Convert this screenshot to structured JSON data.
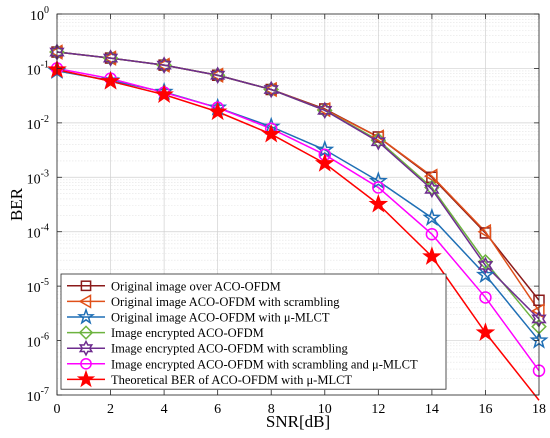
{
  "chart_data": {
    "type": "line",
    "xlabel": "SNR[dB]",
    "ylabel": "BER",
    "x_ticks": [
      0,
      2,
      4,
      6,
      8,
      10,
      12,
      14,
      16,
      18
    ],
    "y_scale": "log",
    "y_ticks": [
      {
        "value": 1,
        "base": "10",
        "exp": "0"
      },
      {
        "value": 0.1,
        "base": "10",
        "exp": "-1"
      },
      {
        "value": 0.01,
        "base": "10",
        "exp": "-2"
      },
      {
        "value": 0.001,
        "base": "10",
        "exp": "-3"
      },
      {
        "value": 0.0001,
        "base": "10",
        "exp": "-4"
      },
      {
        "value": 1e-05,
        "base": "10",
        "exp": "-5"
      },
      {
        "value": 1e-06,
        "base": "10",
        "exp": "-6"
      },
      {
        "value": 1e-07,
        "base": "10",
        "exp": "-7"
      }
    ],
    "xlim": [
      0,
      18
    ],
    "ylim": [
      1e-07,
      1
    ],
    "grid": true,
    "legend_position": "bottom-left",
    "x": [
      0,
      2,
      4,
      6,
      8,
      10,
      12,
      14,
      16,
      18
    ],
    "series": [
      {
        "name": "Original image over ACO-OFDM",
        "color": "#8b1a1a",
        "marker": "square",
        "values": [
          0.2,
          0.155,
          0.115,
          0.075,
          0.041,
          0.018,
          0.0055,
          0.001,
          9.5e-05,
          5.5e-06
        ]
      },
      {
        "name": "Original image ACO-OFDM with scrambling",
        "color": "#e0501a",
        "marker": "triangle-left",
        "values": [
          0.2,
          0.155,
          0.115,
          0.075,
          0.041,
          0.0175,
          0.0055,
          0.00105,
          0.0001,
          3.5e-06
        ]
      },
      {
        "name": "Original image ACO-OFDM with μ-MLCT",
        "color": "#1f6fb5",
        "marker": "star",
        "values": [
          0.09,
          0.06,
          0.037,
          0.019,
          0.0085,
          0.0032,
          0.00085,
          0.00018,
          1.6e-05,
          1e-06
        ]
      },
      {
        "name": "Image encrypted ACO-OFDM",
        "color": "#6db33f",
        "marker": "diamond",
        "values": [
          0.2,
          0.155,
          0.115,
          0.075,
          0.041,
          0.017,
          0.0048,
          0.00065,
          2.8e-05,
          1.8e-06
        ]
      },
      {
        "name": "Image encrypted ACO-OFDM with scrambling",
        "color": "#6e2c8e",
        "marker": "hexagram",
        "values": [
          0.2,
          0.155,
          0.115,
          0.075,
          0.041,
          0.017,
          0.0045,
          0.0006,
          2.4e-05,
          2.5e-06
        ]
      },
      {
        "name": "Image encrypted ACO-OFDM with scrambling and μ-MLCT",
        "color": "#ff00ff",
        "marker": "circle",
        "values": [
          0.1,
          0.065,
          0.036,
          0.019,
          0.0078,
          0.0026,
          0.00065,
          9e-05,
          6.2e-06,
          2.8e-07
        ]
      },
      {
        "name": "Theoretical  BER of ACO-OFDM with μ-MLCT",
        "color": "#ff0000",
        "marker": "pentagram",
        "values": [
          0.095,
          0.058,
          0.033,
          0.016,
          0.0062,
          0.0018,
          0.00032,
          3.5e-05,
          1.4e-06,
          8e-08
        ]
      }
    ]
  }
}
